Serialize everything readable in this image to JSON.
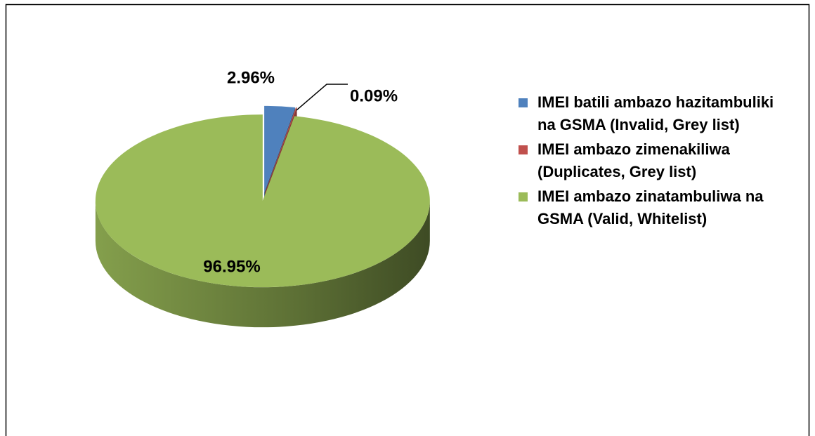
{
  "chart_data": {
    "type": "pie",
    "categories": [
      "IMEI batili ambazo hazitambuliki na GSMA (Invalid, Grey list)",
      "IMEI ambazo zimenakiliwa (Duplicates, Grey list)",
      "IMEI ambazo zinatambuliwa na GSMA (Valid, Whitelist)"
    ],
    "values": [
      2.96,
      0.09,
      96.95
    ],
    "value_labels": [
      "2.96%",
      "0.09%",
      "96.95%"
    ],
    "colors": [
      "#4f81bd",
      "#c0504d",
      "#9bbb59"
    ],
    "legend": "right"
  }
}
